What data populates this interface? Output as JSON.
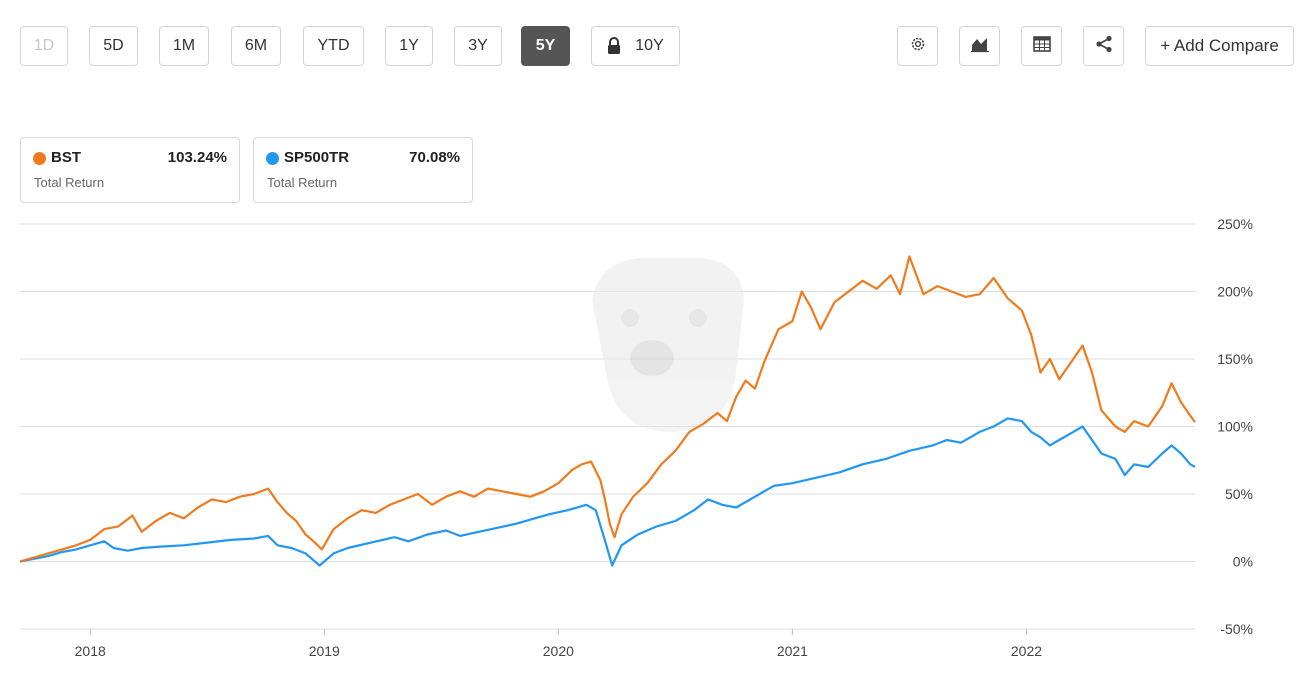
{
  "toolbar": {
    "ranges": [
      {
        "label": "1D",
        "state": "disabled"
      },
      {
        "label": "5D",
        "state": "normal"
      },
      {
        "label": "1M",
        "state": "normal"
      },
      {
        "label": "6M",
        "state": "normal"
      },
      {
        "label": "YTD",
        "state": "normal"
      },
      {
        "label": "1Y",
        "state": "normal"
      },
      {
        "label": "3Y",
        "state": "normal"
      },
      {
        "label": "5Y",
        "state": "active"
      },
      {
        "label": "10Y",
        "state": "locked"
      }
    ],
    "icons": [
      "gear-icon",
      "chart-type-icon",
      "table-icon",
      "share-icon"
    ],
    "add_compare_label": "+ Add Compare"
  },
  "legend": [
    {
      "ticker": "BST",
      "value": "103.24%",
      "subtitle": "Total Return",
      "color": "#f07a1e"
    },
    {
      "ticker": "SP500TR",
      "value": "70.08%",
      "subtitle": "Total Return",
      "color": "#2196f3"
    }
  ],
  "chart_data": {
    "type": "line",
    "x_labels": [
      "2018",
      "2019",
      "2020",
      "2021",
      "2022"
    ],
    "y_ticks": [
      "250%",
      "200%",
      "150%",
      "100%",
      "50%",
      "0%",
      "-50%"
    ],
    "ylim": [
      -50,
      250
    ],
    "y_tick_values": [
      250,
      200,
      150,
      100,
      50,
      0,
      -50
    ],
    "xlim": [
      2017.7,
      2022.72
    ],
    "grid": true,
    "series": [
      {
        "name": "BST",
        "color": "#f07a1e",
        "points": [
          [
            2017.7,
            0
          ],
          [
            2017.76,
            3
          ],
          [
            2017.82,
            6
          ],
          [
            2017.88,
            9
          ],
          [
            2017.94,
            12
          ],
          [
            2018.0,
            16
          ],
          [
            2018.06,
            24
          ],
          [
            2018.12,
            26
          ],
          [
            2018.18,
            34
          ],
          [
            2018.22,
            22
          ],
          [
            2018.28,
            30
          ],
          [
            2018.34,
            36
          ],
          [
            2018.4,
            32
          ],
          [
            2018.46,
            40
          ],
          [
            2018.52,
            46
          ],
          [
            2018.58,
            44
          ],
          [
            2018.64,
            48
          ],
          [
            2018.7,
            50
          ],
          [
            2018.76,
            54
          ],
          [
            2018.8,
            44
          ],
          [
            2018.84,
            36
          ],
          [
            2018.88,
            30
          ],
          [
            2018.92,
            20
          ],
          [
            2018.96,
            14
          ],
          [
            2018.99,
            9
          ],
          [
            2019.04,
            24
          ],
          [
            2019.1,
            32
          ],
          [
            2019.16,
            38
          ],
          [
            2019.22,
            36
          ],
          [
            2019.28,
            42
          ],
          [
            2019.34,
            46
          ],
          [
            2019.4,
            50
          ],
          [
            2019.46,
            42
          ],
          [
            2019.52,
            48
          ],
          [
            2019.58,
            52
          ],
          [
            2019.64,
            48
          ],
          [
            2019.7,
            54
          ],
          [
            2019.76,
            52
          ],
          [
            2019.82,
            50
          ],
          [
            2019.88,
            48
          ],
          [
            2019.94,
            52
          ],
          [
            2020.0,
            58
          ],
          [
            2020.06,
            68
          ],
          [
            2020.1,
            72
          ],
          [
            2020.14,
            74
          ],
          [
            2020.18,
            60
          ],
          [
            2020.2,
            45
          ],
          [
            2020.22,
            28
          ],
          [
            2020.24,
            18
          ],
          [
            2020.27,
            35
          ],
          [
            2020.32,
            48
          ],
          [
            2020.38,
            58
          ],
          [
            2020.44,
            72
          ],
          [
            2020.5,
            82
          ],
          [
            2020.56,
            96
          ],
          [
            2020.62,
            102
          ],
          [
            2020.68,
            110
          ],
          [
            2020.72,
            104
          ],
          [
            2020.76,
            122
          ],
          [
            2020.8,
            134
          ],
          [
            2020.84,
            128
          ],
          [
            2020.88,
            148
          ],
          [
            2020.94,
            172
          ],
          [
            2021.0,
            178
          ],
          [
            2021.04,
            200
          ],
          [
            2021.08,
            188
          ],
          [
            2021.12,
            172
          ],
          [
            2021.18,
            192
          ],
          [
            2021.24,
            200
          ],
          [
            2021.3,
            208
          ],
          [
            2021.36,
            202
          ],
          [
            2021.42,
            212
          ],
          [
            2021.46,
            198
          ],
          [
            2021.5,
            226
          ],
          [
            2021.56,
            198
          ],
          [
            2021.62,
            204
          ],
          [
            2021.68,
            200
          ],
          [
            2021.74,
            196
          ],
          [
            2021.8,
            198
          ],
          [
            2021.86,
            210
          ],
          [
            2021.92,
            195
          ],
          [
            2021.98,
            186
          ],
          [
            2022.02,
            168
          ],
          [
            2022.06,
            140
          ],
          [
            2022.1,
            150
          ],
          [
            2022.14,
            135
          ],
          [
            2022.2,
            150
          ],
          [
            2022.24,
            160
          ],
          [
            2022.28,
            140
          ],
          [
            2022.32,
            112
          ],
          [
            2022.38,
            100
          ],
          [
            2022.42,
            96
          ],
          [
            2022.46,
            104
          ],
          [
            2022.52,
            100
          ],
          [
            2022.58,
            115
          ],
          [
            2022.62,
            132
          ],
          [
            2022.66,
            118
          ],
          [
            2022.7,
            108
          ],
          [
            2022.72,
            103.24
          ]
        ]
      },
      {
        "name": "SP500TR",
        "color": "#2196f3",
        "points": [
          [
            2017.7,
            0
          ],
          [
            2017.76,
            2
          ],
          [
            2017.82,
            4
          ],
          [
            2017.88,
            7
          ],
          [
            2017.94,
            9
          ],
          [
            2018.0,
            12
          ],
          [
            2018.06,
            15
          ],
          [
            2018.1,
            10
          ],
          [
            2018.16,
            8
          ],
          [
            2018.22,
            10
          ],
          [
            2018.3,
            11
          ],
          [
            2018.4,
            12
          ],
          [
            2018.5,
            14
          ],
          [
            2018.6,
            16
          ],
          [
            2018.7,
            17
          ],
          [
            2018.76,
            19
          ],
          [
            2018.8,
            12
          ],
          [
            2018.86,
            10
          ],
          [
            2018.92,
            6
          ],
          [
            2018.98,
            -3
          ],
          [
            2019.04,
            6
          ],
          [
            2019.1,
            10
          ],
          [
            2019.2,
            14
          ],
          [
            2019.3,
            18
          ],
          [
            2019.36,
            15
          ],
          [
            2019.44,
            20
          ],
          [
            2019.52,
            23
          ],
          [
            2019.58,
            19
          ],
          [
            2019.66,
            22
          ],
          [
            2019.74,
            25
          ],
          [
            2019.82,
            28
          ],
          [
            2019.9,
            32
          ],
          [
            2019.96,
            35
          ],
          [
            2020.04,
            38
          ],
          [
            2020.12,
            42
          ],
          [
            2020.16,
            38
          ],
          [
            2020.2,
            15
          ],
          [
            2020.23,
            -3
          ],
          [
            2020.27,
            12
          ],
          [
            2020.34,
            20
          ],
          [
            2020.42,
            26
          ],
          [
            2020.5,
            30
          ],
          [
            2020.58,
            38
          ],
          [
            2020.64,
            46
          ],
          [
            2020.7,
            42
          ],
          [
            2020.76,
            40
          ],
          [
            2020.84,
            48
          ],
          [
            2020.92,
            56
          ],
          [
            2021.0,
            58
          ],
          [
            2021.1,
            62
          ],
          [
            2021.2,
            66
          ],
          [
            2021.3,
            72
          ],
          [
            2021.4,
            76
          ],
          [
            2021.5,
            82
          ],
          [
            2021.6,
            86
          ],
          [
            2021.66,
            90
          ],
          [
            2021.72,
            88
          ],
          [
            2021.8,
            96
          ],
          [
            2021.86,
            100
          ],
          [
            2021.92,
            106
          ],
          [
            2021.98,
            104
          ],
          [
            2022.02,
            96
          ],
          [
            2022.06,
            92
          ],
          [
            2022.1,
            86
          ],
          [
            2022.14,
            90
          ],
          [
            2022.2,
            96
          ],
          [
            2022.24,
            100
          ],
          [
            2022.28,
            90
          ],
          [
            2022.32,
            80
          ],
          [
            2022.38,
            76
          ],
          [
            2022.42,
            64
          ],
          [
            2022.46,
            72
          ],
          [
            2022.52,
            70
          ],
          [
            2022.58,
            80
          ],
          [
            2022.62,
            86
          ],
          [
            2022.66,
            80
          ],
          [
            2022.7,
            72
          ],
          [
            2022.72,
            70.08
          ]
        ]
      }
    ]
  }
}
